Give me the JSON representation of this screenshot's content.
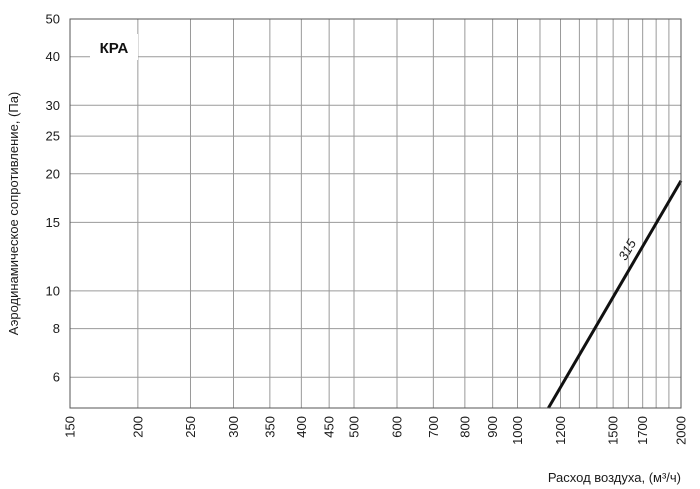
{
  "chart_data": {
    "type": "line",
    "title": "КРА",
    "xlabel": "Расход воздуха, (м³/ч)",
    "ylabel": "Аэродинамическое сопротивление, (Па)",
    "x_scale": "log",
    "y_scale": "log",
    "xlim": [
      150,
      2000
    ],
    "ylim": [
      5,
      50
    ],
    "x_ticks": [
      150,
      200,
      250,
      300,
      350,
      400,
      450,
      500,
      600,
      700,
      800,
      900,
      1000,
      1200,
      1500,
      1700,
      2000
    ],
    "y_ticks": [
      6,
      8,
      10,
      15,
      20,
      25,
      30,
      40,
      50
    ],
    "x_grid": [
      150,
      200,
      250,
      300,
      350,
      400,
      450,
      500,
      600,
      700,
      800,
      900,
      1000,
      1100,
      1200,
      1300,
      1400,
      1500,
      1600,
      1700,
      1800,
      1900,
      2000
    ],
    "y_grid": [
      5,
      6,
      8,
      10,
      15,
      20,
      25,
      30,
      40,
      50
    ],
    "grid": true,
    "series": [
      {
        "name": "315",
        "x": [
          1140,
          2000
        ],
        "y": [
          5,
          19.2
        ]
      }
    ]
  },
  "colors": {
    "grid": "#9a9a9a",
    "line": "#111111",
    "frame": "#555555"
  }
}
